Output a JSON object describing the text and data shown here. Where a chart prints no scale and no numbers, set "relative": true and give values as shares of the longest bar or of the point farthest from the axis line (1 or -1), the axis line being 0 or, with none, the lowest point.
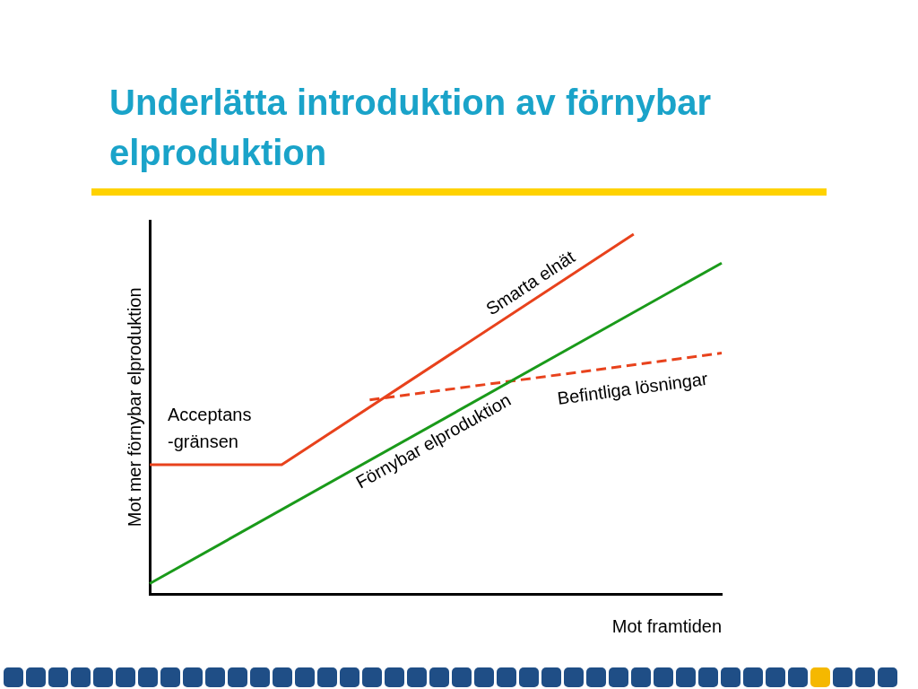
{
  "chart_data": {
    "type": "line",
    "title": "Underlätta introduktion av förnybar elproduktion",
    "xlabel": "Mot framtiden",
    "ylabel": "Mot mer förnybar elproduktion",
    "relative": true,
    "legend": false,
    "grid": false,
    "marker": "none",
    "categories": [
      null,
      null,
      null,
      null,
      null,
      null,
      null,
      null,
      null,
      null,
      null,
      null,
      null,
      null
    ],
    "series": [
      {
        "name": "Smarta elnät",
        "color": "#e8421c",
        "values": [
          0.36,
          null,
          null,
          0.36,
          null,
          null,
          null,
          null,
          null,
          null,
          null,
          1,
          null,
          null
        ]
      },
      {
        "name": "Förnybar elproduktion",
        "color": "#1a9a1a",
        "values": [
          0.03,
          null,
          null,
          null,
          null,
          null,
          null,
          null,
          null,
          null,
          null,
          null,
          null,
          0.92
        ]
      },
      {
        "name": "Befintliga lösningar",
        "color": "#e8421c",
        "line_style": "dashed",
        "values": [
          null,
          null,
          null,
          null,
          null,
          0.54,
          null,
          null,
          null,
          null,
          null,
          null,
          null,
          0.67
        ]
      }
    ],
    "annotations": [
      "Acceptans\n-gränsen"
    ]
  }
}
